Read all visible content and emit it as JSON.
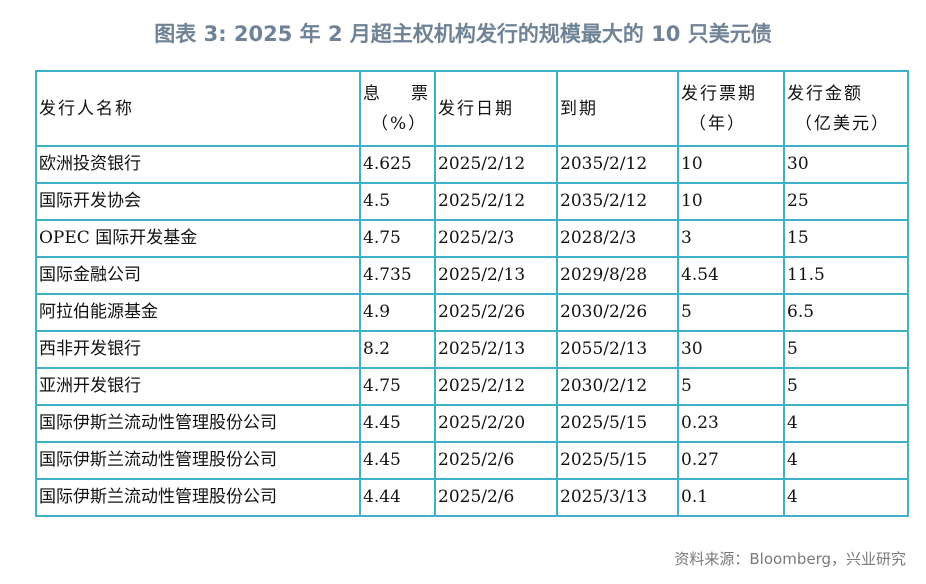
{
  "title": "图表 3:   2025 年 2 月超主权机构发行的规模最大的 10 只美元债",
  "table": {
    "headers": {
      "issuer": "发行人名称",
      "coupon_a": "息",
      "coupon_b": "票",
      "coupon_unit": "（%）",
      "issue_date": "发行日期",
      "maturity": "到期",
      "tenor": "发行票期",
      "tenor_unit": "（年）",
      "amount": "发行金额",
      "amount_unit": "（亿美元）"
    },
    "rows": [
      {
        "issuer": "欧洲投资银行",
        "coupon": "4.625",
        "issue_date": "2025/2/12",
        "maturity": "2035/2/12",
        "tenor": "10",
        "amount": "30"
      },
      {
        "issuer": "国际开发协会",
        "coupon": "4.5",
        "issue_date": "2025/2/12",
        "maturity": "2035/2/12",
        "tenor": "10",
        "amount": "25"
      },
      {
        "issuer": "OPEC 国际开发基金",
        "coupon": "4.75",
        "issue_date": "2025/2/3",
        "maturity": "2028/2/3",
        "tenor": "3",
        "amount": "15"
      },
      {
        "issuer": "国际金融公司",
        "coupon": "4.735",
        "issue_date": "2025/2/13",
        "maturity": "2029/8/28",
        "tenor": "4.54",
        "amount": "11.5"
      },
      {
        "issuer": "阿拉伯能源基金",
        "coupon": "4.9",
        "issue_date": "2025/2/26",
        "maturity": "2030/2/26",
        "tenor": "5",
        "amount": "6.5"
      },
      {
        "issuer": "西非开发银行",
        "coupon": "8.2",
        "issue_date": "2025/2/13",
        "maturity": "2055/2/13",
        "tenor": "30",
        "amount": "5"
      },
      {
        "issuer": "亚洲开发银行",
        "coupon": "4.75",
        "issue_date": "2025/2/12",
        "maturity": "2030/2/12",
        "tenor": "5",
        "amount": "5"
      },
      {
        "issuer": "国际伊斯兰流动性管理股份公司",
        "coupon": "4.45",
        "issue_date": "2025/2/20",
        "maturity": "2025/5/15",
        "tenor": "0.23",
        "amount": "4"
      },
      {
        "issuer": "国际伊斯兰流动性管理股份公司",
        "coupon": "4.45",
        "issue_date": "2025/2/6",
        "maturity": "2025/5/15",
        "tenor": "0.27",
        "amount": "4"
      },
      {
        "issuer": "国际伊斯兰流动性管理股份公司",
        "coupon": "4.44",
        "issue_date": "2025/2/6",
        "maturity": "2025/3/13",
        "tenor": "0.1",
        "amount": "4"
      }
    ]
  },
  "source": "资料来源：Bloomberg，兴业研究",
  "colors": {
    "title": "#6f8296",
    "table_border": "#3eb1c8",
    "source_text": "#7a7a7a"
  }
}
